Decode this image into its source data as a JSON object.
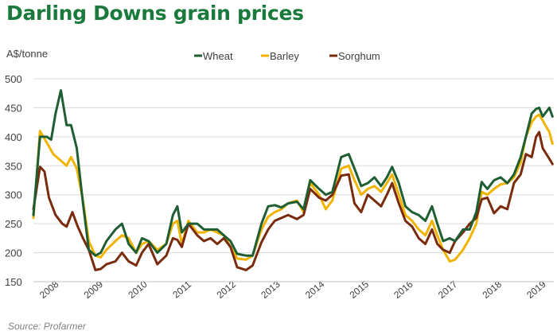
{
  "chart_data": {
    "type": "line",
    "title": "Darling Downs grain prices",
    "ylabel": "A$/tonne",
    "xlabel": "",
    "source": "Source: Profarmer",
    "ylim": [
      150,
      500
    ],
    "yticks": [
      150,
      200,
      250,
      300,
      350,
      400,
      450,
      500
    ],
    "xlim": [
      2007.6,
      2019.1
    ],
    "xticks": [
      "2008",
      "2009",
      "2010",
      "2011",
      "2012",
      "2013",
      "2014",
      "2015",
      "2016",
      "2017",
      "2018",
      "2019"
    ],
    "grid": "horizontal",
    "legend_position": "top",
    "series": [
      {
        "name": "Wheat",
        "color": "#1e5e32",
        "points": [
          [
            2007.6,
            265
          ],
          [
            2007.75,
            400
          ],
          [
            2007.9,
            400
          ],
          [
            2008.0,
            395
          ],
          [
            2008.1,
            440
          ],
          [
            2008.22,
            480
          ],
          [
            2008.35,
            420
          ],
          [
            2008.45,
            420
          ],
          [
            2008.58,
            380
          ],
          [
            2008.72,
            285
          ],
          [
            2008.85,
            205
          ],
          [
            2009.0,
            195
          ],
          [
            2009.12,
            200
          ],
          [
            2009.25,
            220
          ],
          [
            2009.45,
            240
          ],
          [
            2009.6,
            250
          ],
          [
            2009.75,
            215
          ],
          [
            2009.92,
            200
          ],
          [
            2010.05,
            225
          ],
          [
            2010.2,
            220
          ],
          [
            2010.4,
            200
          ],
          [
            2010.6,
            215
          ],
          [
            2010.75,
            265
          ],
          [
            2010.85,
            280
          ],
          [
            2010.95,
            235
          ],
          [
            2011.1,
            250
          ],
          [
            2011.3,
            250
          ],
          [
            2011.45,
            240
          ],
          [
            2011.6,
            240
          ],
          [
            2011.75,
            240
          ],
          [
            2011.9,
            230
          ],
          [
            2012.05,
            220
          ],
          [
            2012.2,
            198
          ],
          [
            2012.4,
            195
          ],
          [
            2012.55,
            195
          ],
          [
            2012.75,
            250
          ],
          [
            2012.9,
            280
          ],
          [
            2013.05,
            282
          ],
          [
            2013.2,
            278
          ],
          [
            2013.35,
            285
          ],
          [
            2013.55,
            288
          ],
          [
            2013.7,
            275
          ],
          [
            2013.85,
            325
          ],
          [
            2014.05,
            310
          ],
          [
            2014.2,
            300
          ],
          [
            2014.35,
            305
          ],
          [
            2014.55,
            365
          ],
          [
            2014.72,
            370
          ],
          [
            2014.85,
            345
          ],
          [
            2015.0,
            315
          ],
          [
            2015.15,
            320
          ],
          [
            2015.3,
            330
          ],
          [
            2015.45,
            315
          ],
          [
            2015.58,
            330
          ],
          [
            2015.7,
            348
          ],
          [
            2015.85,
            320
          ],
          [
            2016.0,
            280
          ],
          [
            2016.15,
            270
          ],
          [
            2016.3,
            265
          ],
          [
            2016.45,
            255
          ],
          [
            2016.6,
            280
          ],
          [
            2016.72,
            250
          ],
          [
            2016.85,
            220
          ],
          [
            2017.0,
            225
          ],
          [
            2017.12,
            220
          ],
          [
            2017.3,
            240
          ],
          [
            2017.45,
            240
          ],
          [
            2017.6,
            270
          ],
          [
            2017.72,
            322
          ],
          [
            2017.85,
            310
          ],
          [
            2018.0,
            325
          ],
          [
            2018.15,
            330
          ],
          [
            2018.3,
            320
          ],
          [
            2018.45,
            335
          ],
          [
            2018.6,
            365
          ],
          [
            2018.72,
            400
          ],
          [
            2018.85,
            440
          ],
          [
            2018.95,
            448
          ],
          [
            2019.02,
            450
          ],
          [
            2019.1,
            435
          ],
          [
            2019.25,
            450
          ],
          [
            2019.32,
            435
          ]
        ]
      },
      {
        "name": "Barley",
        "color": "#f0b400",
        "points": [
          [
            2007.6,
            260
          ],
          [
            2007.75,
            410
          ],
          [
            2007.9,
            390
          ],
          [
            2008.05,
            370
          ],
          [
            2008.2,
            360
          ],
          [
            2008.35,
            350
          ],
          [
            2008.45,
            365
          ],
          [
            2008.58,
            345
          ],
          [
            2008.72,
            290
          ],
          [
            2008.85,
            220
          ],
          [
            2009.0,
            195
          ],
          [
            2009.12,
            192
          ],
          [
            2009.25,
            205
          ],
          [
            2009.45,
            220
          ],
          [
            2009.6,
            230
          ],
          [
            2009.75,
            225
          ],
          [
            2009.92,
            200
          ],
          [
            2010.05,
            215
          ],
          [
            2010.2,
            220
          ],
          [
            2010.4,
            205
          ],
          [
            2010.6,
            215
          ],
          [
            2010.75,
            250
          ],
          [
            2010.85,
            255
          ],
          [
            2010.95,
            215
          ],
          [
            2011.1,
            255
          ],
          [
            2011.3,
            235
          ],
          [
            2011.45,
            235
          ],
          [
            2011.6,
            240
          ],
          [
            2011.75,
            235
          ],
          [
            2011.9,
            230
          ],
          [
            2012.05,
            210
          ],
          [
            2012.2,
            190
          ],
          [
            2012.4,
            188
          ],
          [
            2012.55,
            195
          ],
          [
            2012.75,
            240
          ],
          [
            2012.9,
            262
          ],
          [
            2013.05,
            270
          ],
          [
            2013.2,
            275
          ],
          [
            2013.35,
            285
          ],
          [
            2013.55,
            290
          ],
          [
            2013.7,
            270
          ],
          [
            2013.85,
            320
          ],
          [
            2014.05,
            300
          ],
          [
            2014.2,
            275
          ],
          [
            2014.35,
            290
          ],
          [
            2014.55,
            345
          ],
          [
            2014.72,
            350
          ],
          [
            2014.85,
            325
          ],
          [
            2015.0,
            300
          ],
          [
            2015.15,
            310
          ],
          [
            2015.3,
            315
          ],
          [
            2015.45,
            305
          ],
          [
            2015.58,
            320
          ],
          [
            2015.7,
            335
          ],
          [
            2015.85,
            300
          ],
          [
            2016.0,
            265
          ],
          [
            2016.15,
            255
          ],
          [
            2016.3,
            240
          ],
          [
            2016.45,
            230
          ],
          [
            2016.6,
            255
          ],
          [
            2016.72,
            230
          ],
          [
            2016.85,
            205
          ],
          [
            2017.0,
            185
          ],
          [
            2017.12,
            188
          ],
          [
            2017.3,
            205
          ],
          [
            2017.45,
            225
          ],
          [
            2017.6,
            250
          ],
          [
            2017.72,
            305
          ],
          [
            2017.85,
            300
          ],
          [
            2018.0,
            310
          ],
          [
            2018.15,
            318
          ],
          [
            2018.3,
            320
          ],
          [
            2018.45,
            330
          ],
          [
            2018.6,
            355
          ],
          [
            2018.72,
            400
          ],
          [
            2018.85,
            425
          ],
          [
            2018.95,
            435
          ],
          [
            2019.02,
            438
          ],
          [
            2019.1,
            428
          ],
          [
            2019.25,
            408
          ],
          [
            2019.32,
            388
          ]
        ]
      },
      {
        "name": "Sorghum",
        "color": "#7a2b0d",
        "points": [
          [
            2007.6,
            275
          ],
          [
            2007.75,
            348
          ],
          [
            2007.85,
            340
          ],
          [
            2007.95,
            295
          ],
          [
            2008.1,
            265
          ],
          [
            2008.25,
            250
          ],
          [
            2008.35,
            245
          ],
          [
            2008.48,
            270
          ],
          [
            2008.6,
            245
          ],
          [
            2008.72,
            225
          ],
          [
            2008.85,
            205
          ],
          [
            2009.0,
            170
          ],
          [
            2009.12,
            172
          ],
          [
            2009.25,
            180
          ],
          [
            2009.45,
            185
          ],
          [
            2009.6,
            200
          ],
          [
            2009.75,
            185
          ],
          [
            2009.92,
            178
          ],
          [
            2010.05,
            200
          ],
          [
            2010.2,
            215
          ],
          [
            2010.4,
            180
          ],
          [
            2010.6,
            195
          ],
          [
            2010.75,
            225
          ],
          [
            2010.85,
            222
          ],
          [
            2010.95,
            210
          ],
          [
            2011.1,
            250
          ],
          [
            2011.3,
            230
          ],
          [
            2011.45,
            220
          ],
          [
            2011.6,
            225
          ],
          [
            2011.75,
            215
          ],
          [
            2011.9,
            225
          ],
          [
            2012.05,
            210
          ],
          [
            2012.2,
            175
          ],
          [
            2012.4,
            170
          ],
          [
            2012.55,
            178
          ],
          [
            2012.75,
            218
          ],
          [
            2012.9,
            240
          ],
          [
            2013.05,
            255
          ],
          [
            2013.2,
            260
          ],
          [
            2013.35,
            265
          ],
          [
            2013.55,
            258
          ],
          [
            2013.7,
            265
          ],
          [
            2013.85,
            310
          ],
          [
            2014.05,
            295
          ],
          [
            2014.2,
            290
          ],
          [
            2014.35,
            300
          ],
          [
            2014.55,
            333
          ],
          [
            2014.72,
            335
          ],
          [
            2014.85,
            285
          ],
          [
            2015.0,
            270
          ],
          [
            2015.15,
            300
          ],
          [
            2015.3,
            290
          ],
          [
            2015.45,
            280
          ],
          [
            2015.58,
            300
          ],
          [
            2015.7,
            320
          ],
          [
            2015.85,
            285
          ],
          [
            2016.0,
            255
          ],
          [
            2016.15,
            245
          ],
          [
            2016.3,
            225
          ],
          [
            2016.45,
            215
          ],
          [
            2016.6,
            240
          ],
          [
            2016.72,
            215
          ],
          [
            2016.85,
            205
          ],
          [
            2017.0,
            200
          ],
          [
            2017.12,
            220
          ],
          [
            2017.3,
            235
          ],
          [
            2017.45,
            250
          ],
          [
            2017.6,
            260
          ],
          [
            2017.72,
            292
          ],
          [
            2017.85,
            295
          ],
          [
            2018.0,
            268
          ],
          [
            2018.15,
            280
          ],
          [
            2018.3,
            275
          ],
          [
            2018.45,
            320
          ],
          [
            2018.6,
            335
          ],
          [
            2018.72,
            370
          ],
          [
            2018.85,
            365
          ],
          [
            2018.95,
            400
          ],
          [
            2019.02,
            408
          ],
          [
            2019.1,
            380
          ],
          [
            2019.25,
            362
          ],
          [
            2019.32,
            353
          ]
        ]
      }
    ]
  }
}
